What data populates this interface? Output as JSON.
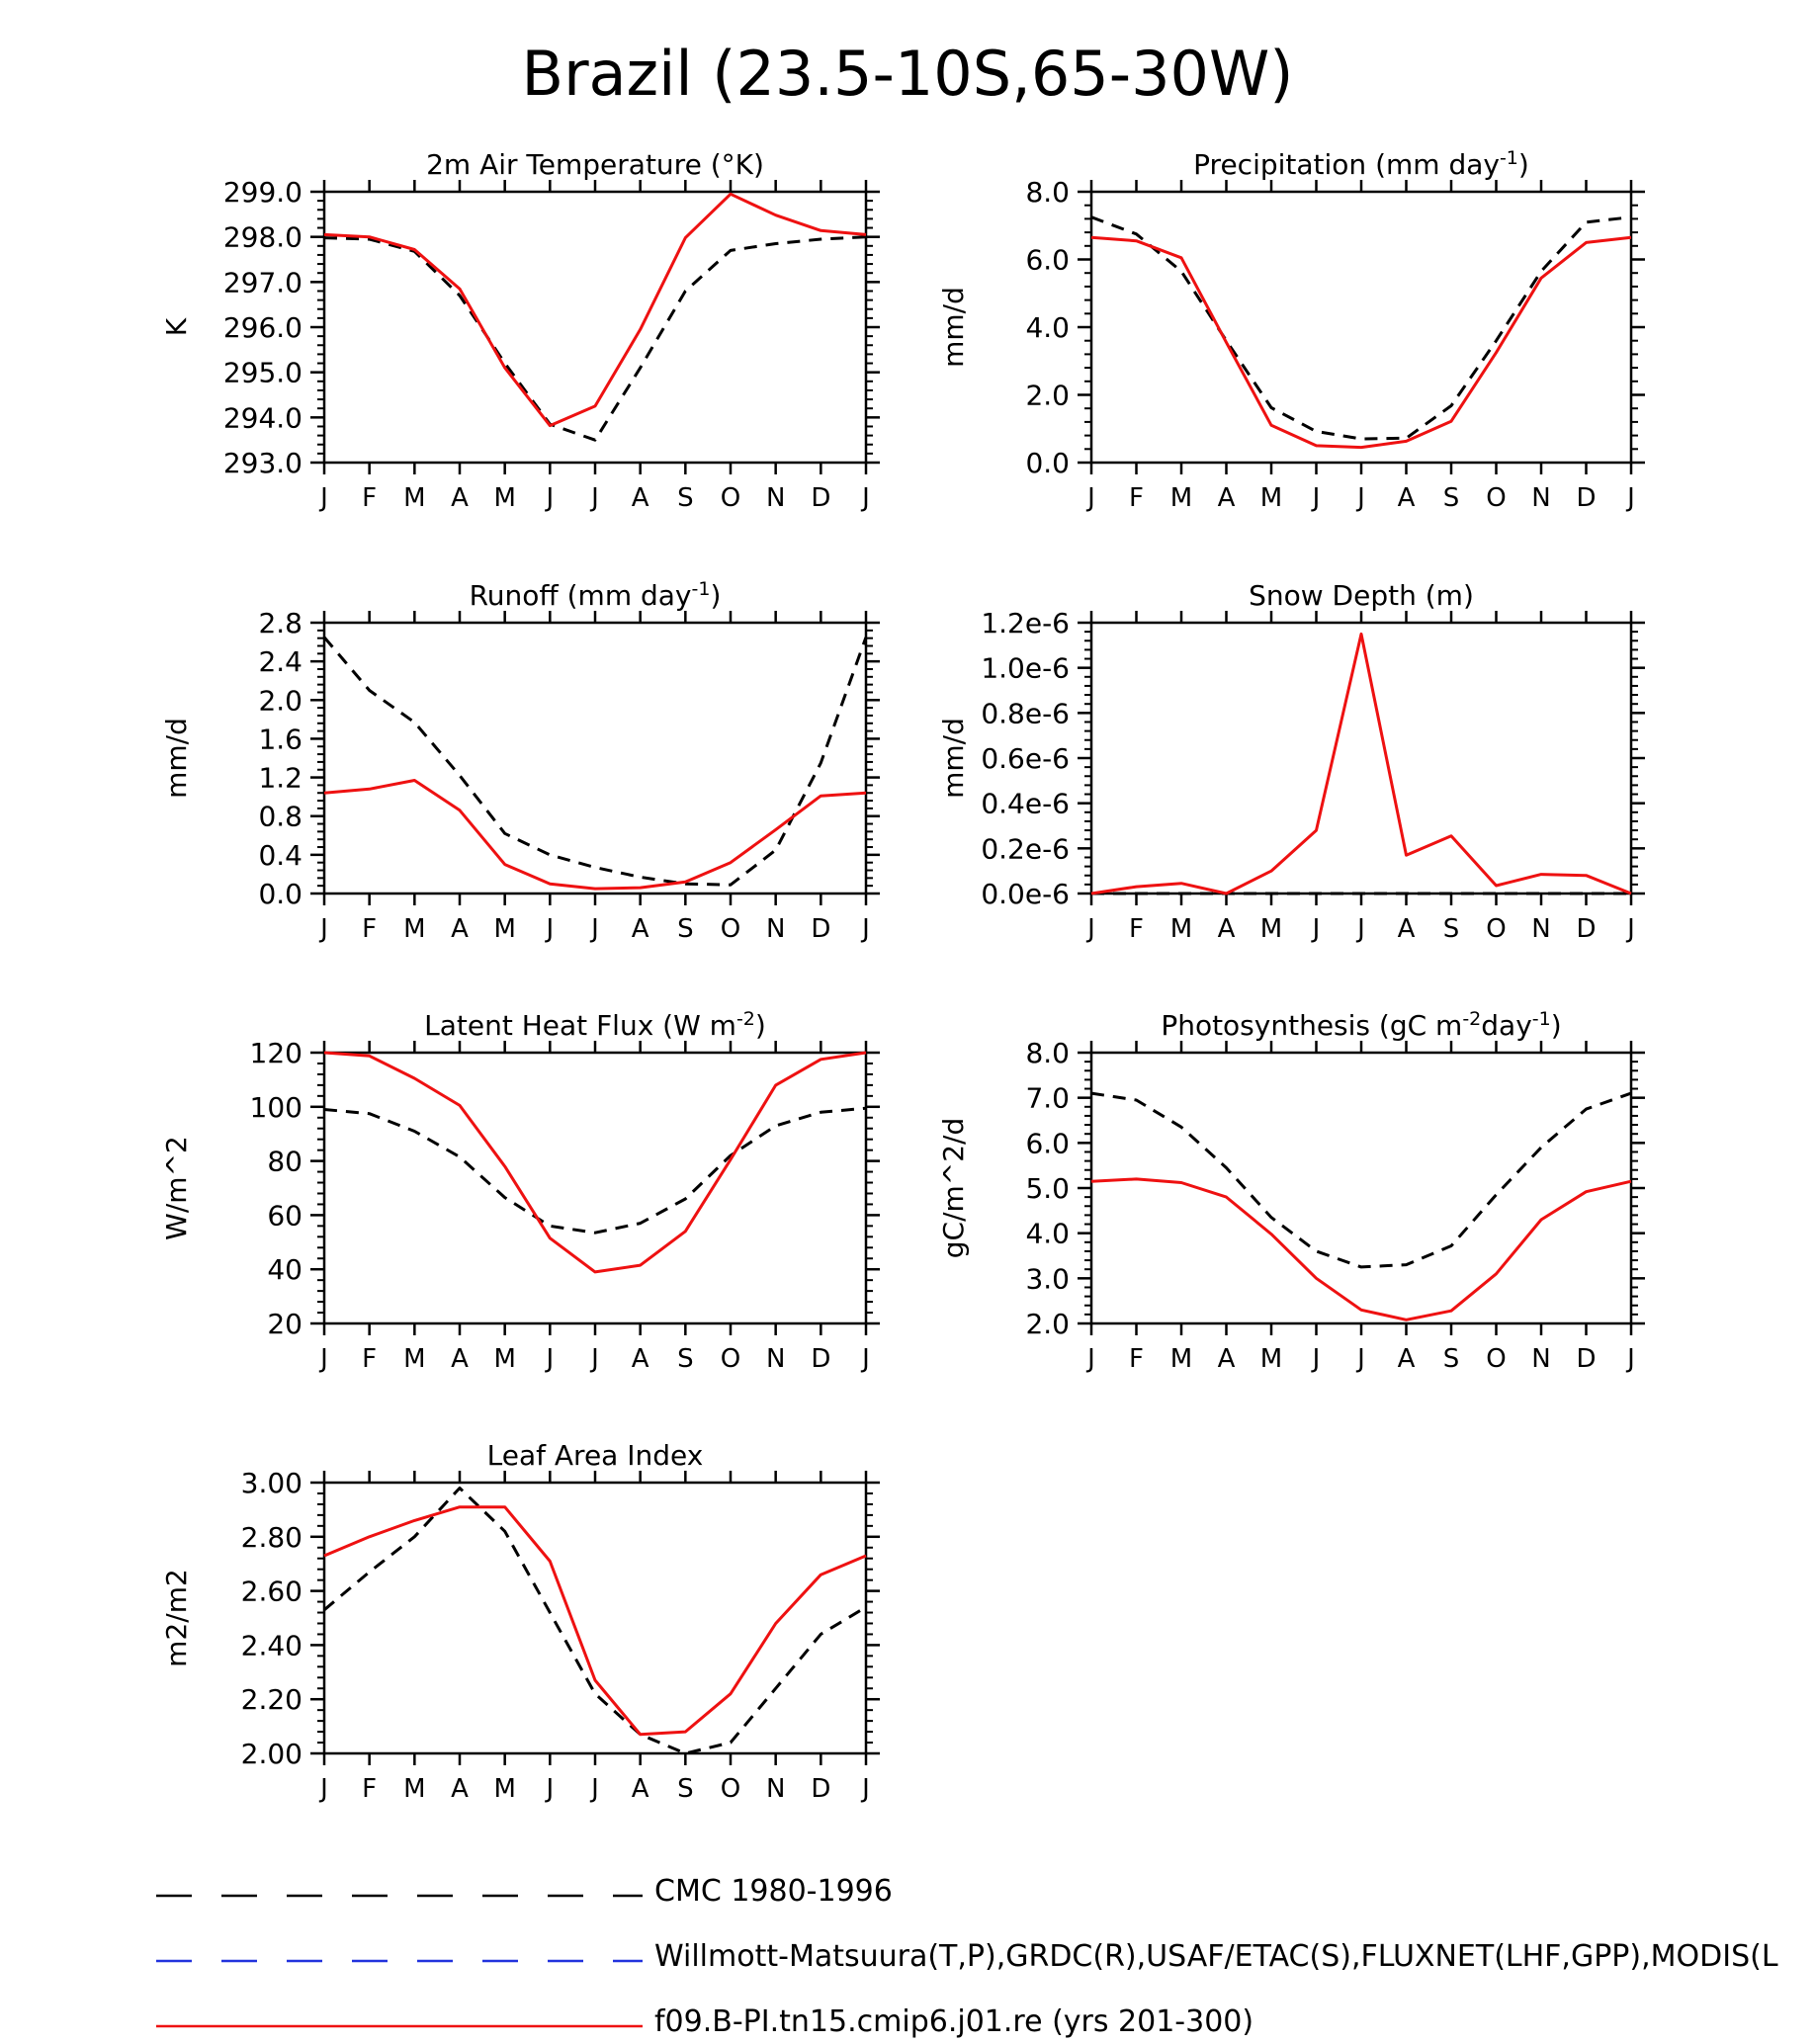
{
  "page_title": "Brazil (23.5-10S,65-30W)",
  "months": [
    "J",
    "F",
    "M",
    "A",
    "M",
    "J",
    "J",
    "A",
    "S",
    "O",
    "N",
    "D",
    "J"
  ],
  "colors": {
    "obs": "#000000",
    "obs2": "#2233dd",
    "model": "#ee1111",
    "axis": "#000000"
  },
  "legend": [
    {
      "label": "CMC 1980-1996",
      "color": "#000000",
      "style": "dashed"
    },
    {
      "label": "Willmott-Matsuura(T,P),GRDC(R),USAF/ETAC(S),FLUXNET(LHF,GPP),MODIS(L",
      "color": "#2233dd",
      "style": "dashed"
    },
    {
      "label": "f09.B-PI.tn15.cmip6.j01.re (yrs 201-300)",
      "color": "#ee1111",
      "style": "solid"
    }
  ],
  "chart_data": [
    {
      "type": "line",
      "title_pre": "2m Air Temperature (°K)",
      "title_sup": "",
      "title_post": "",
      "ylabel": "K",
      "ylim": [
        293,
        299
      ],
      "yticks": [
        "293.0",
        "294.0",
        "295.0",
        "296.0",
        "297.0",
        "298.0",
        "299.0"
      ],
      "x": [
        "J",
        "F",
        "M",
        "A",
        "M",
        "J",
        "J",
        "A",
        "S",
        "O",
        "N",
        "D",
        "J"
      ],
      "series": [
        {
          "style": "dashed",
          "color": "#000000",
          "values": [
            297.98,
            297.95,
            297.68,
            296.7,
            295.2,
            293.85,
            293.5,
            295.1,
            296.8,
            297.7,
            297.85,
            297.95,
            298.0
          ]
        },
        {
          "style": "solid",
          "color": "#ee1111",
          "values": [
            298.05,
            298.0,
            297.72,
            296.85,
            295.1,
            293.82,
            294.25,
            295.95,
            297.98,
            298.95,
            298.48,
            298.14,
            298.05
          ]
        }
      ]
    },
    {
      "type": "line",
      "title_pre": "Precipitation (mm day",
      "title_sup": "-1",
      "title_post": ")",
      "ylabel": "mm/d",
      "ylim": [
        0,
        8
      ],
      "yticks": [
        "0.0",
        "2.0",
        "4.0",
        "6.0",
        "8.0"
      ],
      "x": [
        "J",
        "F",
        "M",
        "A",
        "M",
        "J",
        "J",
        "A",
        "S",
        "O",
        "N",
        "D",
        "J"
      ],
      "series": [
        {
          "style": "dashed",
          "color": "#000000",
          "values": [
            7.25,
            6.75,
            5.65,
            3.6,
            1.62,
            0.92,
            0.7,
            0.72,
            1.68,
            3.6,
            5.65,
            7.1,
            7.25
          ]
        },
        {
          "style": "solid",
          "color": "#ee1111",
          "values": [
            6.65,
            6.55,
            6.05,
            3.55,
            1.1,
            0.5,
            0.45,
            0.63,
            1.22,
            3.25,
            5.45,
            6.5,
            6.65
          ]
        }
      ]
    },
    {
      "type": "line",
      "title_pre": "Runoff (mm day",
      "title_sup": "-1",
      "title_post": ")",
      "ylabel": "mm/d",
      "ylim": [
        0,
        2.8
      ],
      "yticks": [
        "0.0",
        "0.4",
        "0.8",
        "1.2",
        "1.6",
        "2.0",
        "2.4",
        "2.8"
      ],
      "x": [
        "J",
        "F",
        "M",
        "A",
        "M",
        "J",
        "J",
        "A",
        "S",
        "O",
        "N",
        "D",
        "J"
      ],
      "series": [
        {
          "style": "dashed",
          "color": "#000000",
          "values": [
            2.65,
            2.1,
            1.77,
            1.22,
            0.62,
            0.4,
            0.27,
            0.17,
            0.1,
            0.09,
            0.45,
            1.35,
            2.65
          ]
        },
        {
          "style": "solid",
          "color": "#ee1111",
          "values": [
            1.04,
            1.08,
            1.17,
            0.86,
            0.3,
            0.1,
            0.05,
            0.06,
            0.12,
            0.32,
            0.66,
            1.01,
            1.04
          ]
        }
      ]
    },
    {
      "type": "line",
      "title_pre": "Snow Depth (m)",
      "title_sup": "",
      "title_post": "",
      "ylabel": "mm/d",
      "ylim": [
        0,
        1.2
      ],
      "yticks": [
        "0.0e-6",
        "0.2e-6",
        "0.4e-6",
        "0.6e-6",
        "0.8e-6",
        "1.0e-6",
        "1.2e-6"
      ],
      "y_scale_label": "e-6",
      "x": [
        "J",
        "F",
        "M",
        "A",
        "M",
        "J",
        "J",
        "A",
        "S",
        "O",
        "N",
        "D",
        "J"
      ],
      "series": [
        {
          "style": "dashed",
          "color": "#000000",
          "values": [
            0,
            0,
            0,
            0,
            0,
            0,
            0,
            0,
            0,
            0,
            0,
            0,
            0
          ]
        },
        {
          "style": "solid",
          "color": "#ee1111",
          "values": [
            0.0,
            0.03,
            0.045,
            0.0,
            0.1,
            0.28,
            1.15,
            0.17,
            0.255,
            0.035,
            0.085,
            0.08,
            0.0
          ]
        }
      ]
    },
    {
      "type": "line",
      "title_pre": "Latent Heat Flux (W m",
      "title_sup": "-2",
      "title_post": ")",
      "ylabel": "W/m^2",
      "ylim": [
        20,
        120
      ],
      "yticks": [
        "20",
        "40",
        "60",
        "80",
        "100",
        "120"
      ],
      "x": [
        "J",
        "F",
        "M",
        "A",
        "M",
        "J",
        "J",
        "A",
        "S",
        "O",
        "N",
        "D",
        "J"
      ],
      "series": [
        {
          "style": "dashed",
          "color": "#000000",
          "values": [
            99,
            97.5,
            91,
            81.5,
            66.5,
            56,
            53.5,
            57,
            66,
            82,
            93,
            98,
            99.5
          ]
        },
        {
          "style": "solid",
          "color": "#ee1111",
          "values": [
            120,
            118.8,
            110.5,
            100.5,
            78,
            51.5,
            39,
            41.5,
            54,
            80.5,
            108,
            117.5,
            120
          ]
        }
      ]
    },
    {
      "type": "line",
      "title_pre": "Photosynthesis (gC m",
      "title_sup": "-2",
      "title_post": "day",
      "title_sup2": "-1",
      "title_post2": ")",
      "ylabel": "gC/m^2/d",
      "ylim": [
        2,
        8
      ],
      "yticks": [
        "2.0",
        "3.0",
        "4.0",
        "5.0",
        "6.0",
        "7.0",
        "8.0"
      ],
      "x": [
        "J",
        "F",
        "M",
        "A",
        "M",
        "J",
        "J",
        "A",
        "S",
        "O",
        "N",
        "D",
        "J"
      ],
      "series": [
        {
          "style": "dashed",
          "color": "#000000",
          "values": [
            7.1,
            6.95,
            6.35,
            5.45,
            4.35,
            3.6,
            3.25,
            3.3,
            3.72,
            4.85,
            5.9,
            6.75,
            7.1
          ]
        },
        {
          "style": "solid",
          "color": "#ee1111",
          "values": [
            5.15,
            5.2,
            5.12,
            4.8,
            3.98,
            3.0,
            2.3,
            2.08,
            2.28,
            3.1,
            4.3,
            4.92,
            5.15
          ]
        }
      ]
    },
    {
      "type": "line",
      "title_pre": "Leaf Area Index",
      "title_sup": "",
      "title_post": "",
      "ylabel": "m2/m2",
      "ylim": [
        2,
        3
      ],
      "yticks": [
        "2.00",
        "2.20",
        "2.40",
        "2.60",
        "2.80",
        "3.00"
      ],
      "x": [
        "J",
        "F",
        "M",
        "A",
        "M",
        "J",
        "J",
        "A",
        "S",
        "O",
        "N",
        "D",
        "J"
      ],
      "series": [
        {
          "style": "dashed",
          "color": "#000000",
          "values": [
            2.53,
            2.67,
            2.8,
            2.98,
            2.82,
            2.52,
            2.22,
            2.07,
            2.0,
            2.04,
            2.24,
            2.44,
            2.54
          ]
        },
        {
          "style": "solid",
          "color": "#ee1111",
          "values": [
            2.73,
            2.8,
            2.86,
            2.91,
            2.91,
            2.71,
            2.27,
            2.07,
            2.08,
            2.22,
            2.48,
            2.66,
            2.73
          ]
        }
      ]
    }
  ]
}
